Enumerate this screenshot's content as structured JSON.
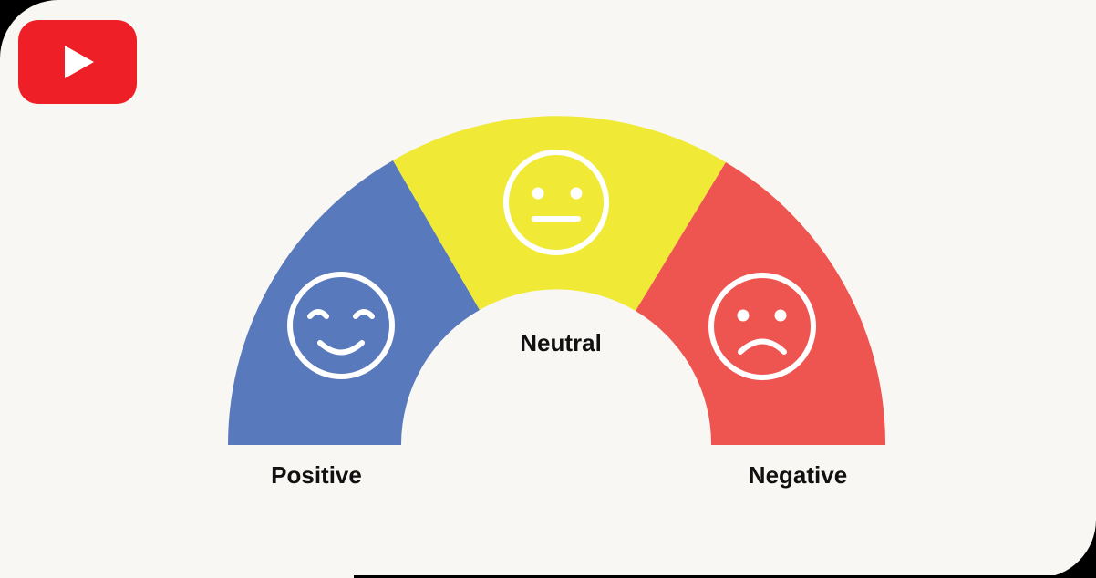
{
  "logo": {
    "icon": "youtube-play-icon",
    "color": "#ef1f27"
  },
  "gauge": {
    "segments": [
      {
        "key": "positive",
        "label": "Positive",
        "color": "#5979bd",
        "face": "smiling-face-icon"
      },
      {
        "key": "neutral",
        "label": "Neutral",
        "color": "#f0ea36",
        "face": "neutral-face-icon"
      },
      {
        "key": "negative",
        "label": "Negative",
        "color": "#ef5550",
        "face": "frowning-face-icon"
      }
    ],
    "background": "#f9f7f3",
    "face_stroke_color": "#ffffff"
  }
}
